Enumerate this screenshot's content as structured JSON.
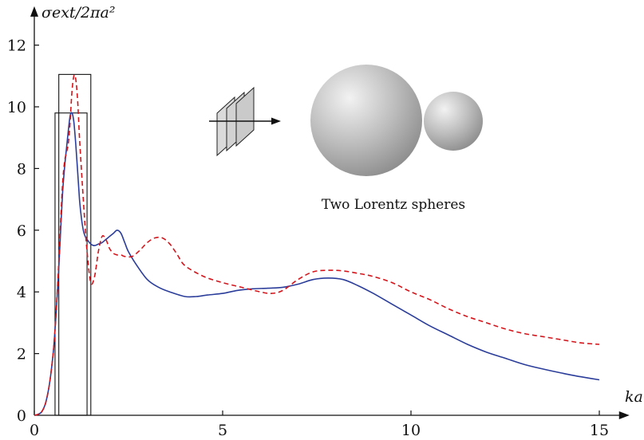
{
  "chart_data": {
    "type": "line",
    "title": "",
    "xlabel": "ka",
    "ylabel": "σext/2πa²",
    "xlim": [
      0,
      15.8
    ],
    "ylim": [
      0,
      13
    ],
    "xticks": [
      0,
      5,
      10,
      15
    ],
    "yticks": [
      0,
      2,
      4,
      6,
      8,
      10,
      12
    ],
    "grid": false,
    "annotations": [
      {
        "text": "Two Lorentz spheres"
      }
    ],
    "series": [
      {
        "color": "#2b3d9a",
        "dash": "solid",
        "x": [
          0,
          0.1,
          0.2,
          0.3,
          0.4,
          0.5,
          0.55,
          0.6,
          0.65,
          0.7,
          0.75,
          0.8,
          0.85,
          0.9,
          0.95,
          1.0,
          1.05,
          1.1,
          1.15,
          1.2,
          1.25,
          1.3,
          1.35,
          1.4,
          1.5,
          1.6,
          1.7,
          1.8,
          1.9,
          2.0,
          2.1,
          2.2,
          2.3,
          2.4,
          2.5,
          2.7,
          3.0,
          3.3,
          3.6,
          4.0,
          4.3,
          4.6,
          5.0,
          5.4,
          5.8,
          6.2,
          6.6,
          7.0,
          7.4,
          7.8,
          8.2,
          8.6,
          9.0,
          9.5,
          10.0,
          10.5,
          11.0,
          11.5,
          12.0,
          12.5,
          13.0,
          13.5,
          14.0,
          14.5,
          15.0
        ],
        "y": [
          0,
          0.03,
          0.12,
          0.4,
          1.0,
          2.0,
          2.8,
          3.7,
          4.8,
          6.0,
          7.2,
          8.0,
          8.6,
          9.2,
          9.7,
          9.8,
          9.5,
          8.8,
          7.9,
          7.0,
          6.4,
          6.0,
          5.8,
          5.7,
          5.55,
          5.5,
          5.55,
          5.6,
          5.7,
          5.8,
          5.9,
          6.0,
          5.9,
          5.6,
          5.3,
          4.9,
          4.4,
          4.15,
          4.0,
          3.85,
          3.85,
          3.9,
          3.95,
          4.05,
          4.1,
          4.12,
          4.15,
          4.25,
          4.4,
          4.45,
          4.4,
          4.2,
          3.95,
          3.6,
          3.25,
          2.9,
          2.6,
          2.3,
          2.05,
          1.85,
          1.65,
          1.5,
          1.37,
          1.25,
          1.15
        ]
      },
      {
        "color": "#d4161c",
        "dash": "dashed",
        "x": [
          0,
          0.1,
          0.2,
          0.3,
          0.4,
          0.5,
          0.55,
          0.6,
          0.65,
          0.7,
          0.75,
          0.8,
          0.85,
          0.9,
          0.95,
          1.0,
          1.05,
          1.1,
          1.15,
          1.2,
          1.3,
          1.4,
          1.5,
          1.6,
          1.7,
          1.8,
          1.9,
          2.0,
          2.1,
          2.2,
          2.3,
          2.4,
          2.6,
          2.8,
          3.0,
          3.2,
          3.4,
          3.6,
          3.8,
          4.0,
          4.5,
          5.0,
          5.5,
          6.0,
          6.3,
          6.6,
          7.0,
          7.4,
          7.8,
          8.2,
          8.6,
          9.0,
          9.5,
          10.0,
          10.5,
          11.0,
          11.5,
          12.0,
          12.5,
          13.0,
          13.5,
          14.0,
          14.5,
          15.0
        ],
        "y": [
          0,
          0.03,
          0.12,
          0.4,
          1.0,
          2.0,
          2.8,
          3.8,
          5.0,
          6.3,
          7.5,
          8.2,
          8.5,
          8.8,
          9.5,
          10.5,
          11.0,
          10.9,
          10.2,
          9.0,
          7.0,
          5.3,
          4.3,
          4.5,
          5.3,
          5.8,
          5.7,
          5.4,
          5.25,
          5.2,
          5.2,
          5.15,
          5.15,
          5.35,
          5.6,
          5.75,
          5.75,
          5.55,
          5.2,
          4.85,
          4.5,
          4.3,
          4.15,
          4.0,
          3.95,
          4.05,
          4.4,
          4.65,
          4.7,
          4.68,
          4.6,
          4.5,
          4.3,
          4.0,
          3.75,
          3.45,
          3.2,
          3.0,
          2.8,
          2.65,
          2.55,
          2.45,
          2.35,
          2.3
        ]
      }
    ],
    "boxes": [
      {
        "x0": 0.65,
        "x1": 1.5,
        "y0": 0,
        "y1": 11.05
      },
      {
        "x0": 0.55,
        "x1": 1.4,
        "y0": 0,
        "y1": 9.8
      }
    ]
  }
}
